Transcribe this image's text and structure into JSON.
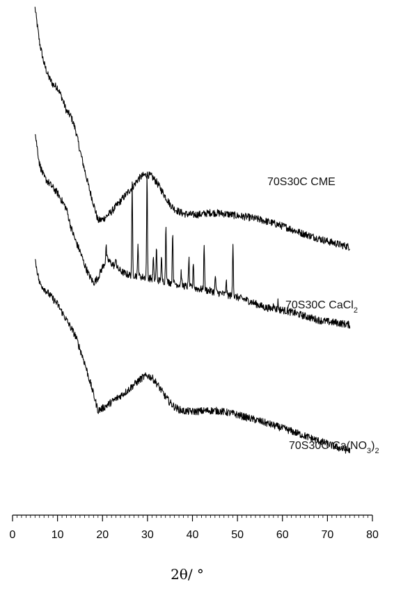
{
  "chart_data": {
    "type": "line",
    "xlabel": "2θ/ °",
    "xlim": [
      0,
      80
    ],
    "x_major_ticks": [
      0,
      10,
      20,
      30,
      40,
      50,
      60,
      70,
      80
    ],
    "x_minor_step": 1,
    "y_axis_visible": false,
    "y_units": "arbitrary (stacked, offset)",
    "grid": false,
    "legend": "none (labels next to curves)",
    "series": [
      {
        "name": "70S30C CME",
        "name_parts": {
          "main": "70S30C CME",
          "sub": "",
          "tail": ""
        },
        "color": "#000000",
        "points": [
          [
            5,
            98.5
          ],
          [
            6,
            92
          ],
          [
            7,
            88
          ],
          [
            8,
            85.5
          ],
          [
            9,
            84
          ],
          [
            10,
            83.5
          ],
          [
            11,
            81.5
          ],
          [
            12,
            79
          ],
          [
            13,
            78
          ],
          [
            14,
            75.5
          ],
          [
            15,
            71.5
          ],
          [
            16,
            68
          ],
          [
            17,
            64.5
          ],
          [
            18,
            61.5
          ],
          [
            19,
            58.3
          ],
          [
            20,
            58.5
          ],
          [
            21,
            59.2
          ],
          [
            22,
            60
          ],
          [
            23,
            61
          ],
          [
            24,
            62
          ],
          [
            25,
            63
          ],
          [
            26,
            64
          ],
          [
            27,
            65
          ],
          [
            28,
            66.2
          ],
          [
            29,
            66.8
          ],
          [
            30,
            67
          ],
          [
            31,
            66.6
          ],
          [
            32,
            65.6
          ],
          [
            33,
            64.2
          ],
          [
            34,
            62.8
          ],
          [
            35,
            61.4
          ],
          [
            36,
            60.5
          ],
          [
            37,
            60
          ],
          [
            38,
            59.6
          ],
          [
            40,
            59.4
          ],
          [
            42,
            59.5
          ],
          [
            44,
            59.8
          ],
          [
            46,
            59.7
          ],
          [
            48,
            59.5
          ],
          [
            50,
            59.2
          ],
          [
            52,
            59
          ],
          [
            55,
            58.5
          ],
          [
            58,
            57.8
          ],
          [
            61,
            57
          ],
          [
            64,
            56
          ],
          [
            67,
            55.2
          ],
          [
            70,
            54.4
          ],
          [
            73,
            53.7
          ],
          [
            75,
            53.3
          ]
        ]
      },
      {
        "name": "70S30C CaCl2",
        "name_parts": {
          "main": "70S30C CaCl",
          "sub": "2",
          "tail": ""
        },
        "color": "#000000",
        "points": [
          [
            5,
            75
          ],
          [
            6,
            69
          ],
          [
            7,
            66.5
          ],
          [
            8,
            65.5
          ],
          [
            9,
            64.5
          ],
          [
            10,
            63.5
          ],
          [
            11,
            62
          ],
          [
            12,
            60.5
          ],
          [
            13,
            57
          ],
          [
            14,
            54.5
          ],
          [
            15,
            52.5
          ],
          [
            16,
            50
          ],
          [
            17,
            48
          ],
          [
            18,
            46.5
          ],
          [
            19,
            47.5
          ],
          [
            20,
            49.5
          ],
          [
            21,
            51
          ],
          [
            22,
            50.2
          ],
          [
            23,
            49.5
          ],
          [
            24,
            48.8
          ],
          [
            25,
            48.3
          ],
          [
            26,
            48
          ],
          [
            26.6,
            48
          ],
          [
            27,
            48
          ],
          [
            28,
            47.8
          ],
          [
            29,
            47.6
          ],
          [
            29.9,
            47.5
          ],
          [
            30,
            47.5
          ],
          [
            31,
            47.3
          ],
          [
            32,
            47.1
          ],
          [
            33,
            46.9
          ],
          [
            34,
            46.8
          ],
          [
            35,
            46.6
          ],
          [
            36,
            46.4
          ],
          [
            37,
            46.2
          ],
          [
            38,
            46
          ],
          [
            39,
            45.8
          ],
          [
            40,
            45.6
          ],
          [
            42,
            45.3
          ],
          [
            44,
            45
          ],
          [
            46,
            44.6
          ],
          [
            48,
            44.2
          ],
          [
            49,
            44
          ],
          [
            50,
            43.8
          ],
          [
            52,
            43.3
          ],
          [
            54,
            42.6
          ],
          [
            56,
            41.9
          ],
          [
            58,
            41.6
          ],
          [
            60,
            41.4
          ],
          [
            62,
            41
          ],
          [
            64,
            40.5
          ],
          [
            66,
            40
          ],
          [
            68,
            39.5
          ],
          [
            70,
            39.2
          ],
          [
            72,
            39
          ],
          [
            75,
            38.6
          ]
        ],
        "sharp_peaks": [
          {
            "x": 20.8,
            "height": 2.6
          },
          {
            "x": 23.0,
            "height": 2.0
          },
          {
            "x": 26.6,
            "height": 17.0
          },
          {
            "x": 27.9,
            "height": 6.0
          },
          {
            "x": 29.9,
            "height": 19.5
          },
          {
            "x": 31.3,
            "height": 4.0
          },
          {
            "x": 32.0,
            "height": 6.0
          },
          {
            "x": 33.1,
            "height": 4.5
          },
          {
            "x": 34.1,
            "height": 11.0
          },
          {
            "x": 35.6,
            "height": 10.0
          },
          {
            "x": 37.5,
            "height": 2.5
          },
          {
            "x": 39.2,
            "height": 5.5
          },
          {
            "x": 40.2,
            "height": 5.0
          },
          {
            "x": 42.6,
            "height": 9.0
          },
          {
            "x": 45.1,
            "height": 3.2
          },
          {
            "x": 47.5,
            "height": 2.8
          },
          {
            "x": 49.0,
            "height": 10.5
          },
          {
            "x": 58.0,
            "height": 1.5
          },
          {
            "x": 59.0,
            "height": 1.5
          }
        ]
      },
      {
        "name": "70S30C Ca(NO3)2",
        "name_parts": {
          "main": "70S30C Ca(NO",
          "sub": "3",
          "tail": ")",
          "sub2": "2"
        },
        "color": "#000000",
        "points": [
          [
            5,
            51
          ],
          [
            6,
            46.5
          ],
          [
            7,
            45.5
          ],
          [
            8,
            44.5
          ],
          [
            9,
            43.5
          ],
          [
            10,
            42.5
          ],
          [
            11,
            41
          ],
          [
            12,
            39.5
          ],
          [
            13,
            38
          ],
          [
            14,
            36.5
          ],
          [
            15,
            34
          ],
          [
            16,
            31.5
          ],
          [
            17,
            28.5
          ],
          [
            18,
            25.5
          ],
          [
            19,
            22.4
          ],
          [
            20,
            22.8
          ],
          [
            21,
            23.4
          ],
          [
            22,
            24
          ],
          [
            23,
            24.6
          ],
          [
            24,
            25.2
          ],
          [
            25,
            25.8
          ],
          [
            26,
            26.5
          ],
          [
            27,
            27.3
          ],
          [
            28,
            28
          ],
          [
            29,
            28.7
          ],
          [
            30,
            29
          ],
          [
            31,
            28.6
          ],
          [
            32,
            27.6
          ],
          [
            33,
            26.3
          ],
          [
            34,
            25
          ],
          [
            35,
            23.9
          ],
          [
            36,
            23.1
          ],
          [
            37,
            22.6
          ],
          [
            38,
            22.3
          ],
          [
            40,
            22.2
          ],
          [
            42,
            22.3
          ],
          [
            44,
            22.4
          ],
          [
            46,
            22.3
          ],
          [
            48,
            22
          ],
          [
            50,
            21.6
          ],
          [
            52,
            21.1
          ],
          [
            55,
            20.4
          ],
          [
            58,
            19.6
          ],
          [
            61,
            18.8
          ],
          [
            64,
            17.9
          ],
          [
            67,
            17
          ],
          [
            70,
            16.1
          ],
          [
            73,
            15.2
          ],
          [
            75,
            14.8
          ]
        ]
      }
    ]
  }
}
